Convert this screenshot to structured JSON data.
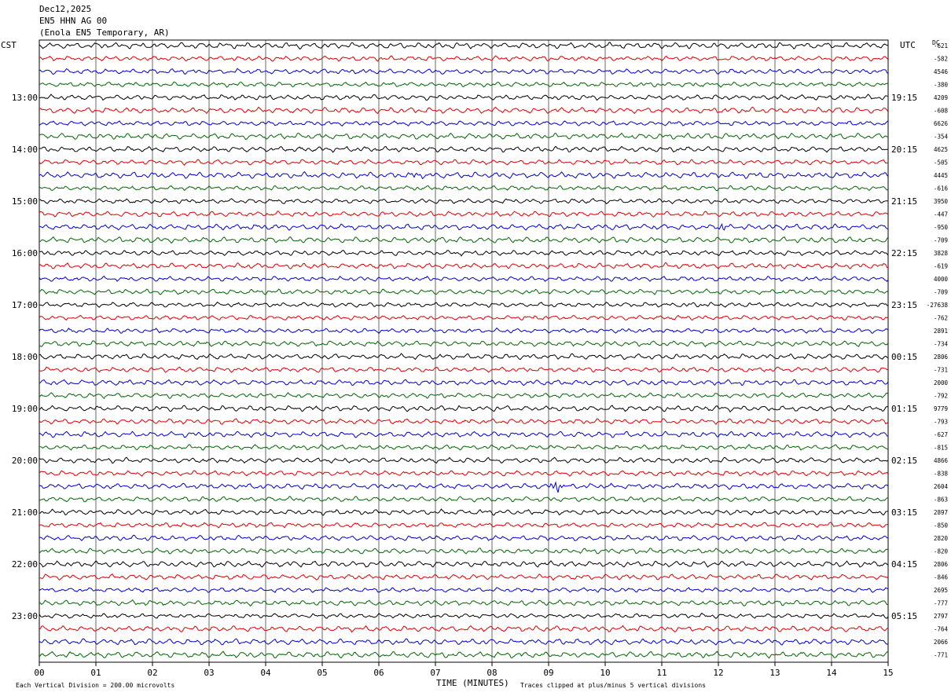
{
  "header": {
    "date": "Dec12,2025",
    "station": "EN5 HHN AG 00",
    "location": "(Enola EN5 Temporary, AR)"
  },
  "left_tz": "CST",
  "right_tz": "UTC",
  "dc_label": "DC",
  "xaxis_title": "TIME (MINUTES)",
  "footer_left": "Each Vertical Division =  200.00 microvolts",
  "footer_right": "Traces clipped at plus/minus 5 vertical divisions",
  "colors": [
    "#000000",
    "#dd0000",
    "#0000cc",
    "#006600"
  ],
  "chart_data": {
    "type": "line",
    "description_free": true,
    "x_range_minutes": [
      0,
      15
    ],
    "x_ticks": [
      "00",
      "01",
      "02",
      "03",
      "04",
      "05",
      "06",
      "07",
      "08",
      "09",
      "10",
      "11",
      "12",
      "13",
      "14",
      "15"
    ],
    "rows_per_hour": 4,
    "grid": true,
    "left_hour_labels": [
      "13:00",
      "14:00",
      "15:00",
      "16:00",
      "17:00",
      "18:00",
      "19:00",
      "20:00",
      "21:00",
      "22:00",
      "23:00"
    ],
    "right_hour_labels": [
      "19:15",
      "20:15",
      "21:15",
      "22:15",
      "23:15",
      "00:15",
      "01:15",
      "02:15",
      "03:15",
      "04:15",
      "05:15"
    ],
    "dc_offsets": [
      "-621",
      "-582",
      "4546",
      "-380",
      "4209",
      "-608",
      "6626",
      "-354",
      "4625",
      "-505",
      "4445",
      "-616",
      "3950",
      "-447",
      "-950",
      "-709",
      "3828",
      "-619",
      "4000",
      "-709",
      "-27638",
      "-762",
      "2891",
      "-734",
      "2806",
      "-731",
      "2000",
      "-792",
      "9779",
      "-793",
      "-627",
      "-815",
      "4866",
      "-838",
      "2604",
      "-863",
      "2897",
      "-850",
      "2820",
      "-820",
      "2806",
      "-846",
      "2695",
      "-777",
      "2797",
      "-764",
      "2066",
      "-771"
    ],
    "events": [
      {
        "row": 34,
        "minute": 9.15,
        "amplitude": "high"
      },
      {
        "row": 10,
        "minute": 6.65,
        "amplitude": "medium"
      },
      {
        "row": 14,
        "minute": 12.05,
        "amplitude": "medium"
      }
    ]
  }
}
